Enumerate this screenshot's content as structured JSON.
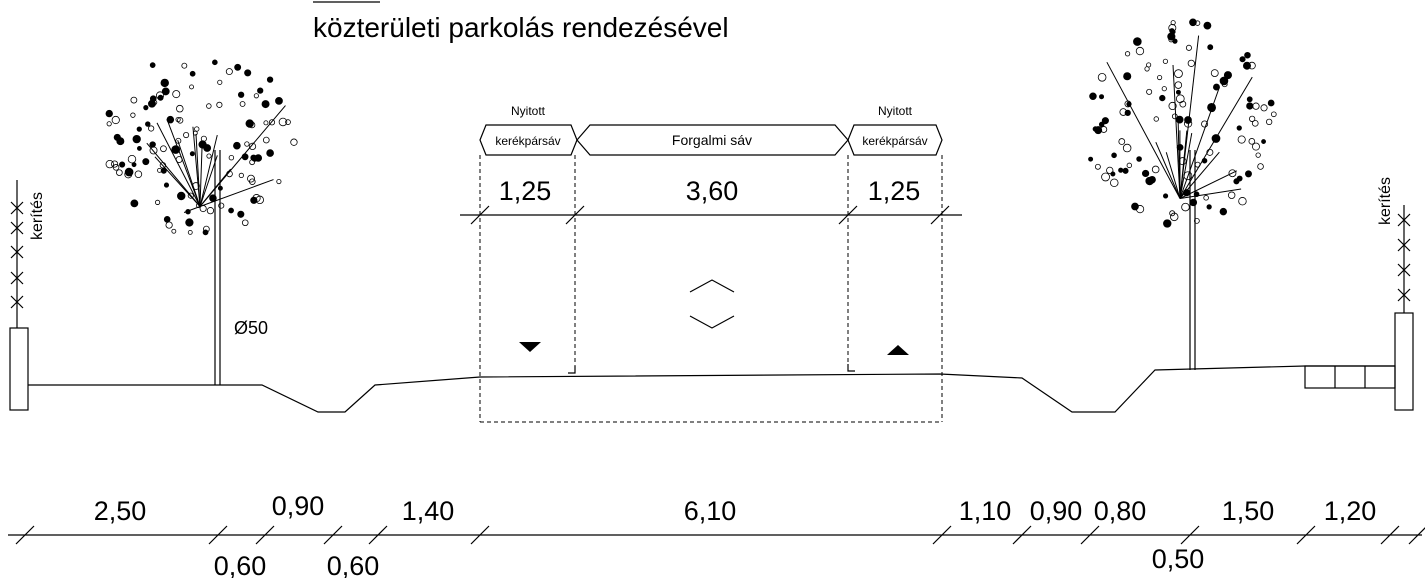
{
  "title": "közterületi parkolás rendezésével",
  "labels": {
    "fence_left": "kerítés",
    "fence_right": "kerítés",
    "tree_diameter": "Ø50"
  },
  "lanes": [
    {
      "note": "Nyitott",
      "name": "kerékpársáv"
    },
    {
      "name": "Forgalmi sáv"
    },
    {
      "note": "Nyitott",
      "name": "kerékpársáv"
    }
  ],
  "top_dimensions": [
    "1,25",
    "3,60",
    "1,25"
  ],
  "bottom_dimensions": [
    "2,50",
    "0,60",
    "0,90",
    "0,60",
    "1,40",
    "6,10",
    "1,10",
    "0,90",
    "0,80",
    "0,50",
    "1,50",
    "1,20"
  ]
}
